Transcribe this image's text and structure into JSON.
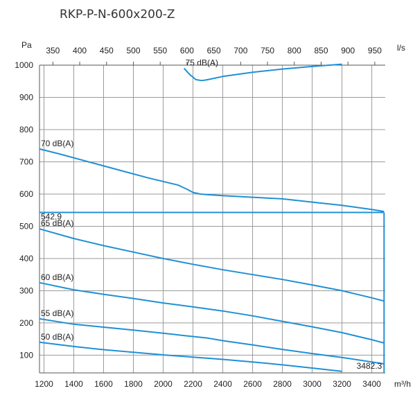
{
  "chart_data": {
    "type": "line",
    "title": "RKP-P-N-600x200-Z",
    "y_unit": "Pa",
    "x_unit_bottom": "m³/h",
    "x_unit_top": "l/s",
    "xlim": [
      1170,
      3490
    ],
    "ylim": [
      45,
      1000
    ],
    "x_ticks": [
      "1200",
      "1400",
      "1600",
      "1800",
      "2000",
      "2200",
      "2400",
      "2600",
      "2800",
      "3000",
      "3200",
      "3400"
    ],
    "y_ticks": [
      "100",
      "200",
      "300",
      "400",
      "500",
      "600",
      "700",
      "800",
      "900",
      "1000"
    ],
    "x_top_ticks": [
      "350",
      "400",
      "450",
      "500",
      "550",
      "600",
      "650",
      "700",
      "750",
      "800",
      "850",
      "900",
      "950"
    ],
    "line_color": "#1e90d6",
    "series": [
      {
        "name": "75 dB(A)",
        "x": [
          2140,
          2180,
          2220,
          2260,
          2300,
          2400,
          2600,
          2800,
          3000,
          3200
        ],
        "y": [
          990,
          970,
          955,
          952,
          955,
          965,
          978,
          988,
          996,
          1003
        ]
      },
      {
        "name": "70 dB(A)",
        "x": [
          1170,
          1300,
          1500,
          1700,
          1900,
          2100,
          2160,
          2200,
          2250,
          2300,
          2400,
          2600,
          2800,
          3000,
          3200,
          3400,
          3482.3
        ],
        "y": [
          740,
          725,
          700,
          675,
          650,
          628,
          615,
          605,
          600,
          598,
          595,
          590,
          585,
          575,
          565,
          552,
          546
        ]
      },
      {
        "name": "65 dB(A)",
        "x": [
          1170,
          1400,
          1600,
          1800,
          2000,
          2200,
          2400,
          2600,
          2800,
          3000,
          3200,
          3400,
          3482.3
        ],
        "y": [
          492,
          462,
          440,
          420,
          400,
          382,
          365,
          350,
          335,
          318,
          300,
          278,
          268
        ]
      },
      {
        "name": "60 dB(A)",
        "x": [
          1170,
          1400,
          1600,
          1800,
          2000,
          2200,
          2400,
          2600,
          2800,
          3000,
          3200,
          3400,
          3482.3
        ],
        "y": [
          325,
          303,
          289,
          276,
          262,
          250,
          237,
          222,
          205,
          188,
          170,
          148,
          138
        ]
      },
      {
        "name": "55 dB(A)",
        "x": [
          1170,
          1400,
          1600,
          1800,
          2000,
          2200,
          2300,
          2400,
          2600,
          2800,
          3000,
          3200,
          3400,
          3482.3
        ],
        "y": [
          213,
          196,
          187,
          178,
          168,
          158,
          153,
          145,
          132,
          118,
          105,
          93,
          79,
          73
        ]
      },
      {
        "name": "50 dB(A)",
        "x": [
          1170,
          1400,
          1600,
          1800,
          2000,
          2200,
          2400,
          2600,
          2800,
          3000,
          3200
        ],
        "y": [
          140,
          127,
          117,
          109,
          101,
          94,
          87,
          79,
          70,
          60,
          50
        ]
      }
    ],
    "operating_point": {
      "x": 3482.3,
      "y": 542.9,
      "x_label": "3482.3",
      "y_label": "542.9"
    },
    "grid": true,
    "legend": "none"
  }
}
